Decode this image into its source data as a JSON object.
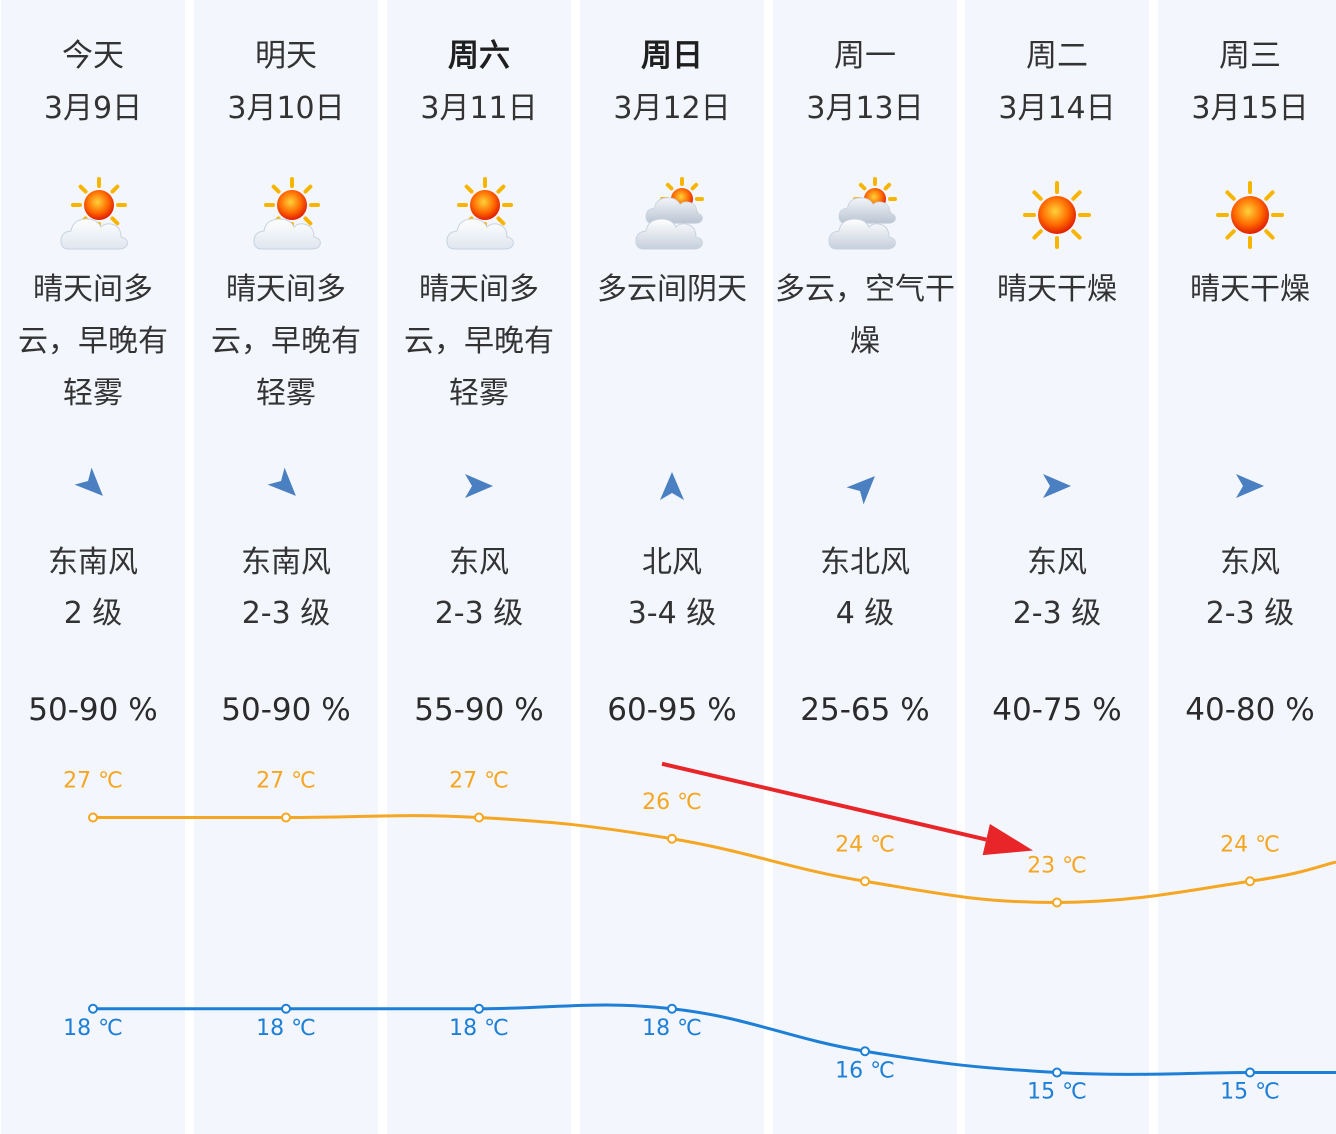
{
  "days": [
    {
      "weekday": "今天",
      "date": "3月9日",
      "weather": "晴天间多云，早晚有轻雾",
      "icon": "partly-cloudy-icon",
      "wind_dir": "东南风",
      "wind_level": "2 级",
      "humidity": "50-90 %",
      "arrow_rotation_deg": 45
    },
    {
      "weekday": "明天",
      "date": "3月10日",
      "weather": "晴天间多云，早晚有轻雾",
      "icon": "partly-cloudy-icon",
      "wind_dir": "东南风",
      "wind_level": "2-3 级",
      "humidity": "50-90 %",
      "arrow_rotation_deg": 45
    },
    {
      "weekday": "周六",
      "date": "3月11日",
      "weather": "晴天间多云，早晚有轻雾",
      "icon": "partly-cloudy-icon",
      "wind_dir": "东风",
      "wind_level": "2-3 级",
      "humidity": "55-90 %",
      "arrow_rotation_deg": 0
    },
    {
      "weekday": "周日",
      "date": "3月12日",
      "weather": "多云间阴天",
      "icon": "cloudy-icon",
      "wind_dir": "北风",
      "wind_level": "3-4 级",
      "humidity": "60-95 %",
      "arrow_rotation_deg": 270
    },
    {
      "weekday": "周一",
      "date": "3月13日",
      "weather": "多云，空气干燥",
      "icon": "cloudy-icon",
      "wind_dir": "东北风",
      "wind_level": "4 级",
      "humidity": "25-65 %",
      "arrow_rotation_deg": 315
    },
    {
      "weekday": "周二",
      "date": "3月14日",
      "weather": "晴天干燥",
      "icon": "sunny-icon",
      "wind_dir": "东风",
      "wind_level": "2-3 级",
      "humidity": "40-75 %",
      "arrow_rotation_deg": 0
    },
    {
      "weekday": "周三",
      "date": "3月15日",
      "weather": "晴天干燥",
      "icon": "sunny-icon",
      "wind_dir": "东风",
      "wind_level": "2-3 级",
      "humidity": "40-80 %",
      "arrow_rotation_deg": 0
    }
  ],
  "colors": {
    "high": "#f5a623",
    "low": "#1e7fd6",
    "arrow": "#4a7fc1",
    "annotation": "#e8262a",
    "column_bg": "#f3f6fc"
  },
  "chart_data": {
    "type": "line",
    "categories": [
      "3月9日",
      "3月10日",
      "3月11日",
      "3月12日",
      "3月13日",
      "3月14日",
      "3月15日"
    ],
    "series": [
      {
        "name": "",
        "values": [
          27,
          27,
          27,
          26,
          24,
          23,
          24
        ]
      },
      {
        "name": "",
        "values": [
          18,
          18,
          18,
          18,
          16,
          15,
          15
        ]
      }
    ],
    "unit_label": "℃",
    "ylim": [
      13,
      29
    ],
    "grid": false,
    "annotation": {
      "type": "arrow",
      "from_index": 3,
      "to_index": 5,
      "target_series": 0
    }
  }
}
